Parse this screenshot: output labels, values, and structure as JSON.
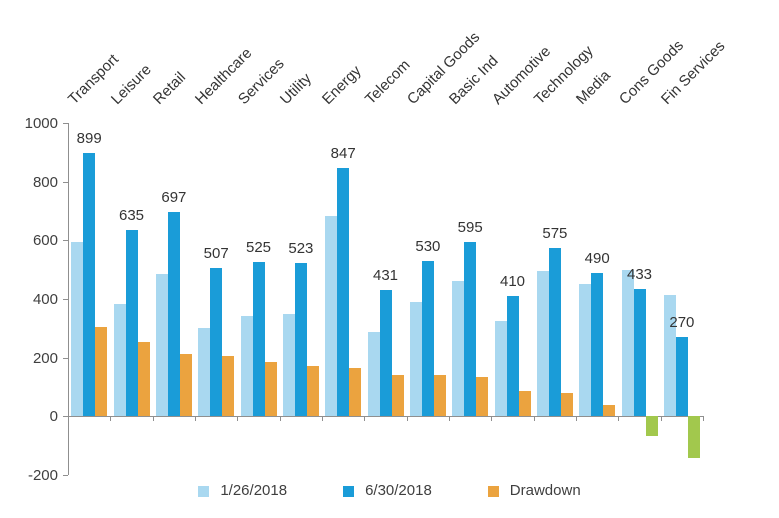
{
  "chart_data": {
    "type": "bar",
    "title": "",
    "xlabel": "",
    "ylabel": "",
    "categories": [
      "Transport",
      "Leisure",
      "Retail",
      "Healthcare",
      "Services",
      "Utility",
      "Energy",
      "Telecom",
      "Capital Goods",
      "Basic Ind",
      "Automotive",
      "Technology",
      "Media",
      "Cons Goods",
      "Fin Services"
    ],
    "series": [
      {
        "name": "1/26/2018",
        "color": "#A9D8F0",
        "values": [
          595,
          382,
          486,
          301,
          341,
          350,
          684,
          289,
          391,
          462,
          324,
          494,
          450,
          500,
          413
        ],
        "show_data_labels": false
      },
      {
        "name": "6/30/2018",
        "color": "#1A9CD8",
        "values": [
          899,
          635,
          697,
          507,
          525,
          523,
          847,
          431,
          530,
          595,
          410,
          575,
          490,
          433,
          270
        ],
        "show_data_labels": true
      },
      {
        "name": "Drawdown",
        "color": "#EBA33F",
        "negative_color": "#A2C84D",
        "values": [
          304,
          253,
          211,
          206,
          184,
          173,
          163,
          142,
          139,
          133,
          86,
          81,
          40,
          -67,
          -143
        ],
        "show_data_labels": false
      }
    ],
    "ylim": [
      -200,
      1000
    ],
    "yticks": [
      -200,
      0,
      200,
      400,
      600,
      800,
      1000
    ],
    "grid": false,
    "legend_position": "bottom",
    "category_labels_position": "top-rotated-45",
    "axis_color": "#8f8f8f",
    "text_color": "#3f3f3f"
  }
}
